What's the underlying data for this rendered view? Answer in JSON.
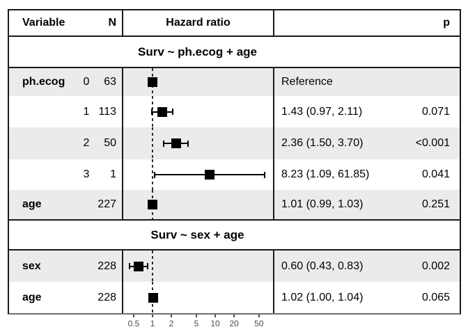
{
  "colors": {
    "shaded_row": "#ebebeb",
    "grid_border": "#1a1a1a",
    "axis_line": "#6e6e6e",
    "marker": "#000000",
    "axis_text": "#4d4d4d"
  },
  "chart_data": {
    "type": "forest",
    "title": "",
    "columns": {
      "variable": "Variable",
      "n": "N",
      "hazard_ratio": "Hazard ratio",
      "p": "p"
    },
    "x_scale": "log10",
    "x_ticks": [
      "0.5",
      "1",
      "2",
      "5",
      "10",
      "20",
      "50"
    ],
    "reference_line": 1,
    "legend": "none",
    "groups": [
      {
        "title": "Surv ~ ph.ecog + age",
        "rows": [
          {
            "variable": "ph.ecog",
            "level": "0",
            "n": "63",
            "hr": 1.0,
            "ci_low": null,
            "ci_high": null,
            "label": "Reference",
            "p": "",
            "shaded": true
          },
          {
            "variable": "",
            "level": "1",
            "n": "113",
            "hr": 1.43,
            "ci_low": 0.97,
            "ci_high": 2.11,
            "label": "1.43 (0.97, 2.11)",
            "p": "0.071",
            "shaded": false
          },
          {
            "variable": "",
            "level": "2",
            "n": "50",
            "hr": 2.36,
            "ci_low": 1.5,
            "ci_high": 3.7,
            "label": "2.36 (1.50, 3.70)",
            "p": "<0.001",
            "shaded": true
          },
          {
            "variable": "",
            "level": "3",
            "n": "1",
            "hr": 8.23,
            "ci_low": 1.09,
            "ci_high": 61.85,
            "label": "8.23 (1.09, 61.85)",
            "p": "0.041",
            "shaded": false
          },
          {
            "variable": "age",
            "level": "",
            "n": "227",
            "hr": 1.01,
            "ci_low": 0.99,
            "ci_high": 1.03,
            "label": "1.01 (0.99, 1.03)",
            "p": "0.251",
            "shaded": true
          }
        ]
      },
      {
        "title": "Surv ~ sex + age",
        "rows": [
          {
            "variable": "sex",
            "level": "",
            "n": "228",
            "hr": 0.6,
            "ci_low": 0.43,
            "ci_high": 0.83,
            "label": "0.60 (0.43, 0.83)",
            "p": "0.002",
            "shaded": true
          },
          {
            "variable": "age",
            "level": "",
            "n": "228",
            "hr": 1.02,
            "ci_low": 1.0,
            "ci_high": 1.04,
            "label": "1.02 (1.00, 1.04)",
            "p": "0.065",
            "shaded": false
          }
        ]
      }
    ]
  }
}
